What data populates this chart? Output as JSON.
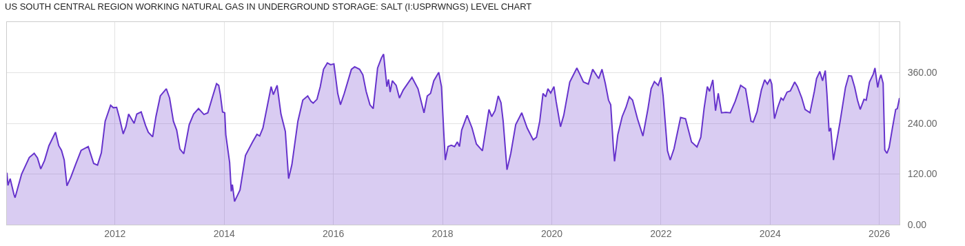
{
  "chart_data": {
    "type": "area",
    "title": "US SOUTH CENTRAL REGION WORKING NATURAL GAS IN UNDERGROUND STORAGE: SALT (I:USPRWNGS) LEVEL CHART",
    "x": [
      2010.02,
      2010.04,
      2010.08,
      2010.15,
      2010.17,
      2010.29,
      2010.43,
      2010.52,
      2010.58,
      2010.64,
      2010.71,
      2010.79,
      2010.91,
      2010.97,
      2011.02,
      2011.07,
      2011.12,
      2011.19,
      2011.28,
      2011.38,
      2011.51,
      2011.61,
      2011.68,
      2011.75,
      2011.82,
      2011.92,
      2011.97,
      2012.03,
      2012.08,
      2012.15,
      2012.2,
      2012.25,
      2012.35,
      2012.4,
      2012.48,
      2012.56,
      2012.61,
      2012.69,
      2012.75,
      2012.83,
      2012.94,
      2013.0,
      2013.07,
      2013.13,
      2013.19,
      2013.26,
      2013.36,
      2013.44,
      2013.53,
      2013.63,
      2013.7,
      2013.78,
      2013.86,
      2013.9,
      2013.93,
      2013.97,
      2014.01,
      2014.03,
      2014.1,
      2014.13,
      2014.15,
      2014.19,
      2014.22,
      2014.29,
      2014.39,
      2014.52,
      2014.6,
      2014.65,
      2014.71,
      2014.86,
      2014.9,
      2014.97,
      2015.04,
      2015.12,
      2015.18,
      2015.24,
      2015.35,
      2015.44,
      2015.53,
      2015.59,
      2015.63,
      2015.7,
      2015.76,
      2015.82,
      2015.89,
      2015.95,
      2016.01,
      2016.08,
      2016.13,
      2016.2,
      2016.33,
      2016.39,
      2016.48,
      2016.54,
      2016.6,
      2016.67,
      2016.73,
      2016.81,
      2016.88,
      2016.92,
      2016.98,
      2017.01,
      2017.04,
      2017.08,
      2017.15,
      2017.21,
      2017.28,
      2017.44,
      2017.55,
      2017.66,
      2017.72,
      2017.78,
      2017.84,
      2017.93,
      2017.98,
      2018.02,
      2018.05,
      2018.1,
      2018.16,
      2018.22,
      2018.27,
      2018.31,
      2018.35,
      2018.45,
      2018.54,
      2018.62,
      2018.73,
      2018.85,
      2018.9,
      2018.96,
      2019.02,
      2019.07,
      2019.11,
      2019.18,
      2019.25,
      2019.34,
      2019.45,
      2019.55,
      2019.66,
      2019.72,
      2019.78,
      2019.84,
      2019.89,
      2019.93,
      2019.98,
      2020.04,
      2020.08,
      2020.16,
      2020.22,
      2020.33,
      2020.46,
      2020.52,
      2020.58,
      2020.67,
      2020.75,
      2020.86,
      2020.92,
      2020.98,
      2021.04,
      2021.08,
      2021.13,
      2021.15,
      2021.21,
      2021.29,
      2021.36,
      2021.42,
      2021.48,
      2021.57,
      2021.67,
      2021.76,
      2021.82,
      2021.88,
      2021.95,
      2022.0,
      2022.04,
      2022.12,
      2022.17,
      2022.24,
      2022.36,
      2022.45,
      2022.56,
      2022.66,
      2022.73,
      2022.79,
      2022.85,
      2022.89,
      2022.95,
      2023.0,
      2023.05,
      2023.11,
      2023.19,
      2023.27,
      2023.36,
      2023.46,
      2023.55,
      2023.65,
      2023.69,
      2023.76,
      2023.84,
      2023.9,
      2023.95,
      2024.0,
      2024.03,
      2024.08,
      2024.14,
      2024.2,
      2024.24,
      2024.31,
      2024.37,
      2024.45,
      2024.5,
      2024.58,
      2024.64,
      2024.73,
      2024.81,
      2024.85,
      2024.91,
      2024.96,
      2025.01,
      2025.04,
      2025.08,
      2025.11,
      2025.16,
      2025.28,
      2025.38,
      2025.44,
      2025.49,
      2025.55,
      2025.6,
      2025.65,
      2025.72,
      2025.76,
      2025.82,
      2025.89,
      2025.92,
      2025.97,
      2026.0,
      2026.03,
      2026.07,
      2026.1,
      2026.14,
      2026.18,
      2026.24,
      2026.3,
      2026.33,
      2026.37
    ],
    "series": [
      {
        "color": "#6633cc",
        "values": [
          123,
          93,
          109,
          71,
          64,
          120,
          159,
          169,
          158,
          132,
          152,
          187,
          219,
          187,
          176,
          153,
          92,
          112,
          143,
          176,
          185,
          145,
          141,
          170,
          245,
          283,
          277,
          278,
          254,
          215,
          232,
          262,
          240,
          262,
          267,
          235,
          219,
          208,
          256,
          305,
          322,
          300,
          245,
          224,
          179,
          168,
          237,
          262,
          275,
          261,
          265,
          300,
          334,
          330,
          308,
          267,
          265,
          213,
          147,
          79,
          95,
          55,
          63,
          82,
          164,
          196,
          214,
          210,
          229,
          327,
          308,
          330,
          262,
          221,
          109,
          142,
          245,
          295,
          305,
          292,
          288,
          297,
          327,
          368,
          383,
          379,
          381,
          311,
          284,
          311,
          368,
          374,
          368,
          355,
          316,
          284,
          275,
          371,
          395,
          404,
          327,
          344,
          314,
          341,
          330,
          300,
          319,
          349,
          322,
          265,
          305,
          311,
          341,
          361,
          327,
          224,
          153,
          185,
          188,
          185,
          196,
          185,
          224,
          259,
          229,
          191,
          175,
          273,
          256,
          270,
          305,
          289,
          245,
          130,
          169,
          237,
          265,
          229,
          201,
          207,
          245,
          311,
          303,
          322,
          312,
          327,
          292,
          232,
          259,
          338,
          371,
          355,
          338,
          333,
          368,
          346,
          368,
          335,
          295,
          284,
          180,
          150,
          213,
          256,
          278,
          303,
          295,
          251,
          210,
          273,
          322,
          339,
          330,
          349,
          305,
          175,
          153,
          180,
          254,
          251,
          196,
          184,
          207,
          275,
          327,
          316,
          343,
          270,
          311,
          265,
          266,
          265,
          292,
          330,
          322,
          245,
          243,
          267,
          319,
          343,
          333,
          345,
          333,
          251,
          278,
          300,
          295,
          314,
          317,
          338,
          327,
          300,
          273,
          265,
          316,
          346,
          363,
          341,
          365,
          311,
          221,
          229,
          153,
          243,
          325,
          353,
          352,
          325,
          295,
          273,
          297,
          295,
          338,
          357,
          371,
          325,
          344,
          355,
          335,
          177,
          169,
          183,
          229,
          273,
          275,
          300
        ]
      }
    ],
    "xlim": [
      2010.02,
      2026.37
    ],
    "xticks": [
      2012,
      2014,
      2016,
      2018,
      2020,
      2022,
      2024,
      2026
    ],
    "ylim": [
      0,
      480
    ],
    "yticks": [
      {
        "value": 0,
        "label": "0.00"
      },
      {
        "value": 120,
        "label": "120.00"
      },
      {
        "value": 240,
        "label": "240.00"
      },
      {
        "value": 360,
        "label": "360.00"
      }
    ],
    "grid": true
  }
}
